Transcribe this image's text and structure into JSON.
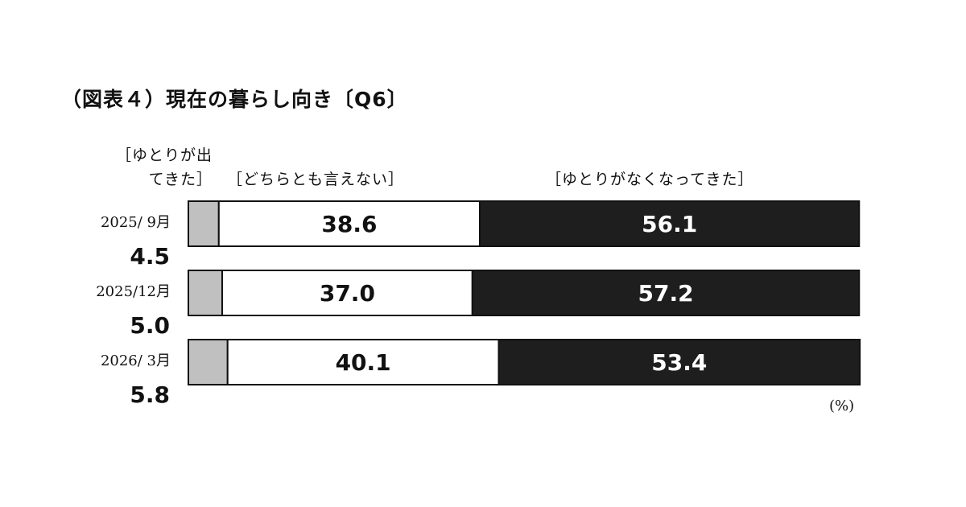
{
  "chart_data": {
    "type": "bar",
    "orientation": "horizontal",
    "stacked": true,
    "title": "（図表４）現在の暮らし向き〔Q6〕",
    "unit": "(%)",
    "categories": [
      "2025/ 9月",
      "2025/12月",
      "2026/ 3月"
    ],
    "series": [
      {
        "name": "［ゆとりが出てきた］",
        "values": [
          4.5,
          5.0,
          5.8
        ],
        "color": "#c0c0c0",
        "label_color": "#111111"
      },
      {
        "name": "［どちらとも言えない］",
        "values": [
          38.6,
          37.0,
          40.1
        ],
        "color": "#ffffff",
        "label_color": "#111111"
      },
      {
        "name": "［ゆとりがなくなってきた］",
        "values": [
          56.1,
          57.2,
          53.4
        ],
        "color": "#1e1e1e",
        "label_color": "#ffffff"
      }
    ],
    "xlim": [
      0,
      100
    ],
    "grid": false,
    "legend": "top"
  }
}
